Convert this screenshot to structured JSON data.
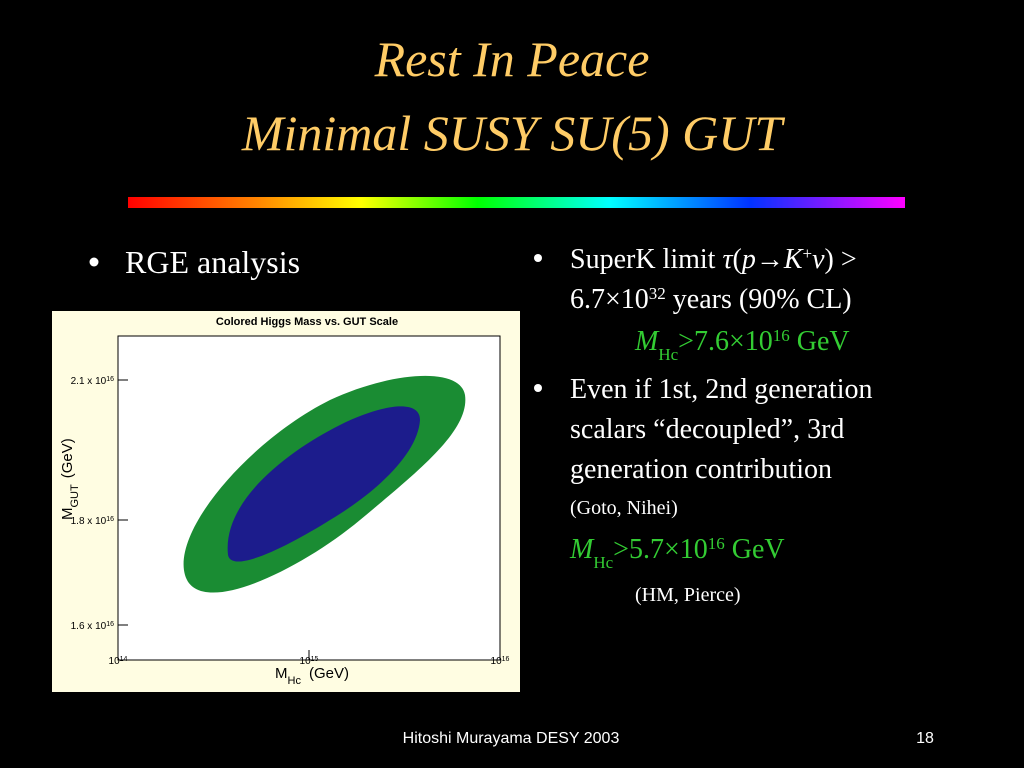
{
  "title": [
    "Rest In Peace",
    "Minimal SUSY SU(5) GUT"
  ],
  "left_bullet": "RGE analysis",
  "figure": {
    "title": "Colored Higgs Mass vs. GUT Scale",
    "y_label": [
      "M",
      "GUT",
      "(GeV)"
    ],
    "x_label": [
      "M",
      "Hc",
      "(GeV)"
    ],
    "x_ticks": [
      [
        "10",
        "14"
      ],
      [
        "10",
        "15"
      ],
      [
        "10",
        "16"
      ]
    ],
    "y_ticks": [
      [
        "2.1 x 10",
        "16"
      ],
      [
        "1.8 x 10",
        "16"
      ],
      [
        "1.6 x 10",
        "16"
      ]
    ]
  },
  "right_bullets": [
    {
      "line1": [
        "SuperK limit ",
        "τ",
        "(",
        "p",
        "→",
        "K",
        "+",
        "ν",
        ") >"
      ],
      "line2": [
        "6.7×10",
        "32",
        " years (90% CL)"
      ],
      "result": [
        "M",
        "Hc",
        ">7.6×10",
        "16",
        " GeV"
      ]
    },
    {
      "lines": [
        "Even if 1st, 2nd generation",
        "scalars “decoupled”, 3rd",
        "generation contribution"
      ],
      "citation": "(Goto, Nihei)",
      "result": [
        "M",
        "Hc",
        ">5.7×10",
        "16",
        " GeV"
      ],
      "citation2": "(HM, Pierce)"
    }
  ],
  "footer": {
    "text": "Hitoshi Murayama DESY 2003",
    "page": "18"
  }
}
